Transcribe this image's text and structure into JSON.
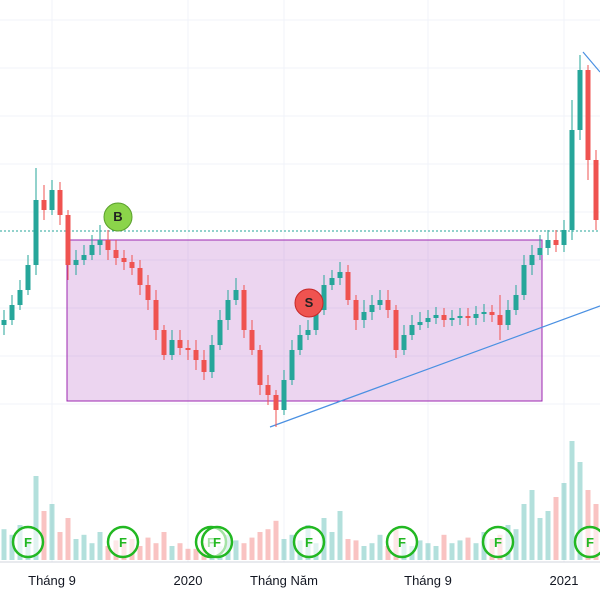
{
  "chart_data": {
    "type": "candlestick",
    "categories": [
      null,
      null,
      null,
      null,
      null,
      null,
      "Tháng 9",
      null,
      null,
      null,
      null,
      null,
      null,
      null,
      null,
      null,
      null,
      null,
      null,
      null,
      null,
      null,
      null,
      "2020",
      null,
      null,
      null,
      null,
      null,
      null,
      null,
      null,
      null,
      null,
      null,
      "Tháng Năm",
      null,
      null,
      null,
      null,
      null,
      null,
      null,
      null,
      null,
      null,
      null,
      null,
      null,
      null,
      null,
      null,
      null,
      "Tháng 9",
      null,
      null,
      null,
      null,
      null,
      null,
      null,
      null,
      null,
      null,
      null,
      null,
      null,
      null,
      null,
      null,
      "2021",
      null,
      null,
      null,
      null
    ],
    "open": [
      17.5,
      18,
      19.5,
      21,
      23.5,
      30,
      29,
      31,
      28.5,
      23.5,
      24,
      24.5,
      25.5,
      26,
      25,
      24.2,
      23.8,
      23.2,
      21.5,
      20,
      17,
      14.5,
      16,
      15.2,
      15,
      14,
      12.8,
      15.5,
      18,
      20,
      21,
      17,
      15,
      11.5,
      10.5,
      9,
      12,
      15,
      16.5,
      17,
      19,
      21.5,
      22.2,
      22.8,
      20,
      18,
      18.8,
      19.5,
      20,
      19,
      15,
      16.5,
      17.5,
      17.8,
      18.2,
      18.5,
      18,
      18.2,
      18.4,
      18.2,
      18.6,
      18.8,
      18.5,
      17.5,
      19,
      20.5,
      23.5,
      24.5,
      25.2,
      26,
      25.5,
      27,
      37,
      43,
      34
    ],
    "high": [
      19,
      20.5,
      22,
      24.5,
      33.2,
      31.5,
      32,
      31.8,
      29,
      25,
      25.5,
      26.5,
      27.5,
      27,
      26,
      25,
      24.5,
      24,
      22.5,
      21,
      17.5,
      17,
      17,
      16,
      16,
      15,
      16.5,
      19,
      21,
      22.2,
      21.5,
      18,
      15.5,
      12.5,
      11,
      13,
      16,
      17.5,
      18,
      20,
      22.5,
      23,
      23.8,
      23.5,
      20.5,
      20,
      20.5,
      21,
      21,
      19.5,
      17.5,
      18.5,
      18.8,
      19,
      19.3,
      19.2,
      19,
      19.2,
      19.2,
      19.4,
      19.6,
      19.5,
      20.5,
      20,
      21.5,
      24.5,
      25.5,
      26.5,
      27,
      27,
      28,
      40,
      44.5,
      43.5,
      35
    ],
    "low": [
      16.5,
      17.5,
      19,
      20.5,
      22.5,
      28,
      28.5,
      27.5,
      22,
      22.5,
      23.5,
      24,
      24.5,
      24,
      23.5,
      23,
      22.5,
      20.5,
      19,
      16,
      14,
      14,
      14.5,
      14,
      13,
      12,
      12.2,
      15,
      17,
      19.5,
      16.2,
      14.5,
      10.5,
      9.5,
      7.3,
      8.5,
      11.5,
      14.5,
      16,
      16.5,
      18.5,
      21,
      21.5,
      19.5,
      17,
      17.2,
      18,
      19,
      18.2,
      14.2,
      14.5,
      16,
      17,
      17.2,
      17.6,
      17.3,
      17.4,
      17.5,
      17.4,
      17.5,
      17.8,
      17.8,
      16,
      17,
      18.5,
      20,
      22.5,
      24,
      24.5,
      24.8,
      24.8,
      26,
      36,
      32,
      27
    ],
    "close": [
      18,
      19.5,
      21,
      23.5,
      30,
      29,
      31,
      28.5,
      23.5,
      24,
      24.5,
      25.5,
      26,
      25,
      24.2,
      23.8,
      23.2,
      21.5,
      20,
      17,
      14.5,
      16,
      15.2,
      15,
      14,
      12.8,
      15.5,
      18,
      20,
      21,
      17,
      15,
      11.5,
      10.5,
      9,
      12,
      15,
      16.5,
      17,
      19,
      21.5,
      22.2,
      22.8,
      20,
      18,
      18.8,
      19.5,
      20,
      19,
      15,
      16.5,
      17.5,
      17.8,
      18.2,
      18.5,
      18,
      18.2,
      18.4,
      18.2,
      18.6,
      18.8,
      18.5,
      17.5,
      19,
      20.5,
      23.5,
      24.5,
      25.2,
      26,
      25.5,
      27,
      37,
      43,
      34,
      28
    ],
    "volume": [
      22,
      18,
      25,
      15,
      60,
      35,
      40,
      20,
      30,
      15,
      18,
      12,
      20,
      10,
      14,
      12,
      15,
      10,
      16,
      12,
      20,
      10,
      12,
      8,
      8,
      12,
      15,
      10,
      18,
      14,
      12,
      16,
      20,
      22,
      28,
      15,
      18,
      14,
      25,
      12,
      30,
      20,
      35,
      15,
      14,
      10,
      12,
      18,
      10,
      22,
      12,
      10,
      14,
      12,
      10,
      18,
      12,
      14,
      16,
      12,
      20,
      15,
      18,
      25,
      22,
      40,
      50,
      30,
      35,
      45,
      55,
      85,
      70,
      50,
      40
    ],
    "ylim": [
      0,
      50
    ],
    "volume_ylim": [
      0,
      100
    ],
    "up_color": "#26a69a",
    "down_color": "#ef5350",
    "signals": [
      "B",
      "S"
    ],
    "events": [
      "F",
      "F",
      "F",
      "F",
      "F",
      "F",
      "F",
      "F"
    ]
  }
}
